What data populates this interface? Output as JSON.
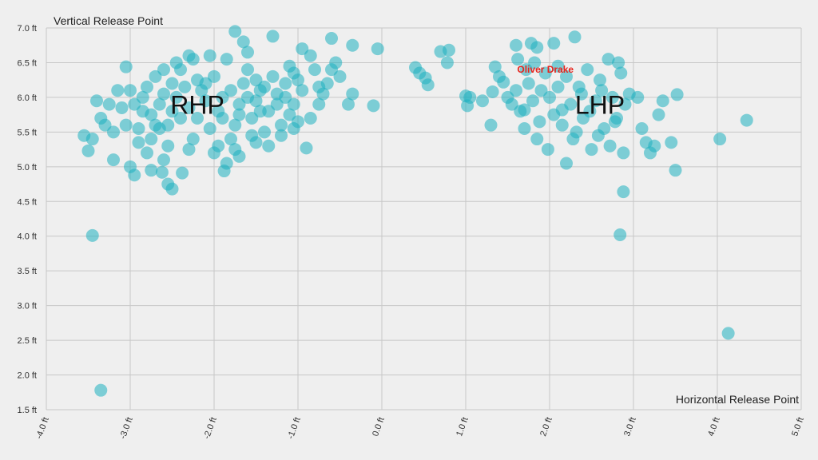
{
  "chart_data": {
    "type": "scatter",
    "xlabel": "Horizontal Release Point",
    "ylabel": "Vertical Release Point",
    "xlim": [
      -4.0,
      5.0
    ],
    "ylim": [
      1.5,
      7.0
    ],
    "x_ticks": [
      -4.0,
      -3.0,
      -2.0,
      -1.0,
      0.0,
      1.0,
      2.0,
      3.0,
      4.0,
      5.0
    ],
    "x_tick_labels": [
      "-4.0 ft",
      "-3.0 ft",
      "-2.0 ft",
      "-1.0 ft",
      "0.0 ft",
      "1.0 ft",
      "2.0 ft",
      "3.0 ft",
      "4.0 ft",
      "5.0 ft"
    ],
    "y_ticks": [
      1.5,
      2.0,
      2.5,
      3.0,
      3.5,
      4.0,
      4.5,
      5.0,
      5.5,
      6.0,
      6.5,
      7.0
    ],
    "y_tick_labels": [
      "1.5 ft",
      "2.0 ft",
      "2.5 ft",
      "3.0 ft",
      "3.5 ft",
      "4.0 ft",
      "4.5 ft",
      "5.0 ft",
      "5.5 ft",
      "6.0 ft",
      "6.5 ft",
      "7.0 ft"
    ],
    "grid": true,
    "point_color": "#1eb0bf",
    "annotation_color": "#e8231c",
    "group_labels": [
      {
        "text": "RHP",
        "x": -2.2,
        "y": 5.9
      },
      {
        "text": "LHP",
        "x": 2.6,
        "y": 5.9
      }
    ],
    "annotations": [
      {
        "text": "Oliver Drake",
        "x": 1.95,
        "y": 6.4
      }
    ],
    "points": [
      [
        -3.35,
        1.78
      ],
      [
        -3.45,
        4.01
      ],
      [
        4.13,
        2.6
      ],
      [
        2.84,
        4.02
      ],
      [
        2.88,
        4.64
      ],
      [
        -3.55,
        5.45
      ],
      [
        -3.45,
        5.4
      ],
      [
        -3.5,
        5.23
      ],
      [
        -3.2,
        5.1
      ],
      [
        -3.0,
        5.0
      ],
      [
        -2.95,
        4.88
      ],
      [
        -2.75,
        4.95
      ],
      [
        -2.62,
        4.92
      ],
      [
        -2.55,
        4.75
      ],
      [
        -2.5,
        4.68
      ],
      [
        -2.38,
        4.91
      ],
      [
        -1.88,
        4.94
      ],
      [
        -3.4,
        5.95
      ],
      [
        -3.35,
        5.7
      ],
      [
        -3.3,
        5.6
      ],
      [
        -3.2,
        5.5
      ],
      [
        -3.25,
        5.9
      ],
      [
        -3.15,
        6.1
      ],
      [
        -3.05,
        5.6
      ],
      [
        -3.0,
        6.1
      ],
      [
        -2.95,
        5.9
      ],
      [
        -2.9,
        5.55
      ],
      [
        -2.85,
        5.8
      ],
      [
        -2.8,
        6.15
      ],
      [
        -2.8,
        5.2
      ],
      [
        -2.75,
        5.4
      ],
      [
        -2.7,
        5.6
      ],
      [
        -2.65,
        5.9
      ],
      [
        -2.7,
        6.3
      ],
      [
        -2.6,
        5.1
      ],
      [
        -2.55,
        5.3
      ],
      [
        -2.55,
        5.6
      ],
      [
        -2.5,
        5.8
      ],
      [
        -2.45,
        6.0
      ],
      [
        -2.4,
        6.4
      ],
      [
        -2.4,
        5.7
      ],
      [
        -2.3,
        5.25
      ],
      [
        -2.3,
        6.6
      ],
      [
        -2.25,
        5.4
      ],
      [
        -2.2,
        5.7
      ],
      [
        -2.15,
        6.1
      ],
      [
        -2.1,
        6.2
      ],
      [
        -2.05,
        5.55
      ],
      [
        -2.0,
        5.2
      ],
      [
        -1.95,
        5.8
      ],
      [
        -1.9,
        6.0
      ],
      [
        -1.85,
        6.55
      ],
      [
        -1.8,
        5.4
      ],
      [
        -1.75,
        5.6
      ],
      [
        -1.7,
        5.9
      ],
      [
        -1.65,
        6.2
      ],
      [
        -1.6,
        6.4
      ],
      [
        -1.55,
        5.7
      ],
      [
        -1.5,
        5.95
      ],
      [
        -1.45,
        6.1
      ],
      [
        -1.4,
        5.5
      ],
      [
        -1.35,
        5.8
      ],
      [
        -1.3,
        6.3
      ],
      [
        -1.25,
        6.05
      ],
      [
        -1.2,
        5.6
      ],
      [
        -1.15,
        6.0
      ],
      [
        -1.1,
        6.45
      ],
      [
        -1.05,
        5.9
      ],
      [
        -1.0,
        5.65
      ],
      [
        -0.95,
        6.1
      ],
      [
        -1.75,
        6.95
      ],
      [
        -1.65,
        6.8
      ],
      [
        -1.6,
        6.65
      ],
      [
        -1.3,
        6.88
      ],
      [
        -2.05,
        6.6
      ],
      [
        -2.25,
        6.55
      ],
      [
        -2.45,
        6.5
      ],
      [
        -2.6,
        6.4
      ],
      [
        -3.05,
        6.44
      ],
      [
        -1.85,
        5.05
      ],
      [
        -1.7,
        5.15
      ],
      [
        -1.5,
        5.35
      ],
      [
        -1.35,
        5.3
      ],
      [
        -1.2,
        5.45
      ],
      [
        -1.05,
        5.55
      ],
      [
        -0.9,
        5.27
      ],
      [
        -0.85,
        5.7
      ],
      [
        -0.75,
        5.9
      ],
      [
        -0.7,
        6.05
      ],
      [
        -0.65,
        6.2
      ],
      [
        -0.6,
        6.4
      ],
      [
        -0.55,
        6.5
      ],
      [
        -0.5,
        6.3
      ],
      [
        -0.4,
        5.9
      ],
      [
        -0.35,
        6.05
      ],
      [
        -0.95,
        6.7
      ],
      [
        -0.85,
        6.6
      ],
      [
        -0.6,
        6.85
      ],
      [
        -0.35,
        6.75
      ],
      [
        -0.05,
        6.7
      ],
      [
        -0.1,
        5.88
      ],
      [
        -1.9,
        5.7
      ],
      [
        -1.8,
        6.1
      ],
      [
        -1.7,
        5.75
      ],
      [
        -1.6,
        6.0
      ],
      [
        -1.5,
        6.25
      ],
      [
        -1.45,
        5.8
      ],
      [
        -1.4,
        6.15
      ],
      [
        -2.0,
        6.3
      ],
      [
        -2.1,
        5.95
      ],
      [
        -2.2,
        6.25
      ],
      [
        -2.3,
        5.85
      ],
      [
        -2.35,
        6.15
      ],
      [
        -2.5,
        6.2
      ],
      [
        -2.6,
        6.05
      ],
      [
        -2.65,
        5.55
      ],
      [
        -2.75,
        5.75
      ],
      [
        -2.85,
        6.0
      ],
      [
        -2.9,
        5.35
      ],
      [
        -3.1,
        5.85
      ],
      [
        -1.95,
        5.3
      ],
      [
        -1.75,
        5.25
      ],
      [
        -1.55,
        5.45
      ],
      [
        -1.25,
        5.9
      ],
      [
        -1.15,
        6.2
      ],
      [
        -1.05,
        6.35
      ],
      [
        -0.8,
        6.4
      ],
      [
        -0.75,
        6.15
      ],
      [
        -1.0,
        6.25
      ],
      [
        -1.1,
        5.75
      ],
      [
        0.4,
        6.43
      ],
      [
        0.45,
        6.35
      ],
      [
        0.52,
        6.28
      ],
      [
        0.55,
        6.18
      ],
      [
        0.7,
        6.66
      ],
      [
        0.78,
        6.5
      ],
      [
        0.8,
        6.68
      ],
      [
        1.0,
        6.02
      ],
      [
        1.02,
        5.88
      ],
      [
        1.05,
        6.0
      ],
      [
        1.2,
        5.95
      ],
      [
        1.3,
        5.6
      ],
      [
        1.32,
        6.08
      ],
      [
        1.35,
        6.44
      ],
      [
        1.4,
        6.3
      ],
      [
        1.45,
        6.22
      ],
      [
        1.5,
        6.0
      ],
      [
        1.55,
        5.9
      ],
      [
        1.6,
        6.1
      ],
      [
        1.6,
        6.75
      ],
      [
        1.62,
        6.55
      ],
      [
        1.65,
        5.8
      ],
      [
        1.7,
        5.55
      ],
      [
        1.72,
        6.4
      ],
      [
        1.75,
        6.2
      ],
      [
        1.78,
        6.78
      ],
      [
        1.8,
        5.95
      ],
      [
        1.82,
        6.5
      ],
      [
        1.85,
        6.72
      ],
      [
        1.88,
        5.65
      ],
      [
        1.9,
        6.1
      ],
      [
        1.95,
        6.35
      ],
      [
        1.98,
        5.25
      ],
      [
        2.0,
        6.0
      ],
      [
        2.05,
        6.78
      ],
      [
        2.05,
        5.75
      ],
      [
        2.1,
        6.45
      ],
      [
        2.15,
        5.6
      ],
      [
        2.2,
        6.3
      ],
      [
        2.2,
        5.05
      ],
      [
        2.25,
        5.9
      ],
      [
        2.28,
        5.4
      ],
      [
        2.3,
        6.87
      ],
      [
        2.35,
        6.15
      ],
      [
        2.4,
        5.7
      ],
      [
        2.45,
        6.4
      ],
      [
        2.5,
        5.25
      ],
      [
        2.55,
        5.95
      ],
      [
        2.6,
        6.25
      ],
      [
        2.65,
        5.55
      ],
      [
        2.7,
        6.55
      ],
      [
        2.72,
        5.3
      ],
      [
        2.75,
        6.0
      ],
      [
        2.8,
        5.7
      ],
      [
        2.82,
        6.5
      ],
      [
        2.85,
        6.35
      ],
      [
        2.88,
        5.2
      ],
      [
        2.9,
        5.9
      ],
      [
        2.95,
        6.05
      ],
      [
        3.05,
        6.0
      ],
      [
        3.1,
        5.55
      ],
      [
        3.15,
        5.35
      ],
      [
        3.2,
        5.2
      ],
      [
        3.25,
        5.3
      ],
      [
        3.3,
        5.75
      ],
      [
        3.35,
        5.95
      ],
      [
        3.45,
        5.35
      ],
      [
        3.5,
        4.95
      ],
      [
        3.52,
        6.04
      ],
      [
        4.03,
        5.4
      ],
      [
        4.35,
        5.67
      ],
      [
        2.15,
        5.82
      ],
      [
        2.32,
        5.5
      ],
      [
        2.48,
        5.8
      ],
      [
        2.58,
        5.45
      ],
      [
        1.7,
        5.82
      ],
      [
        1.85,
        5.4
      ],
      [
        2.1,
        6.15
      ],
      [
        2.38,
        6.05
      ],
      [
        2.62,
        6.1
      ],
      [
        2.78,
        5.65
      ]
    ]
  }
}
